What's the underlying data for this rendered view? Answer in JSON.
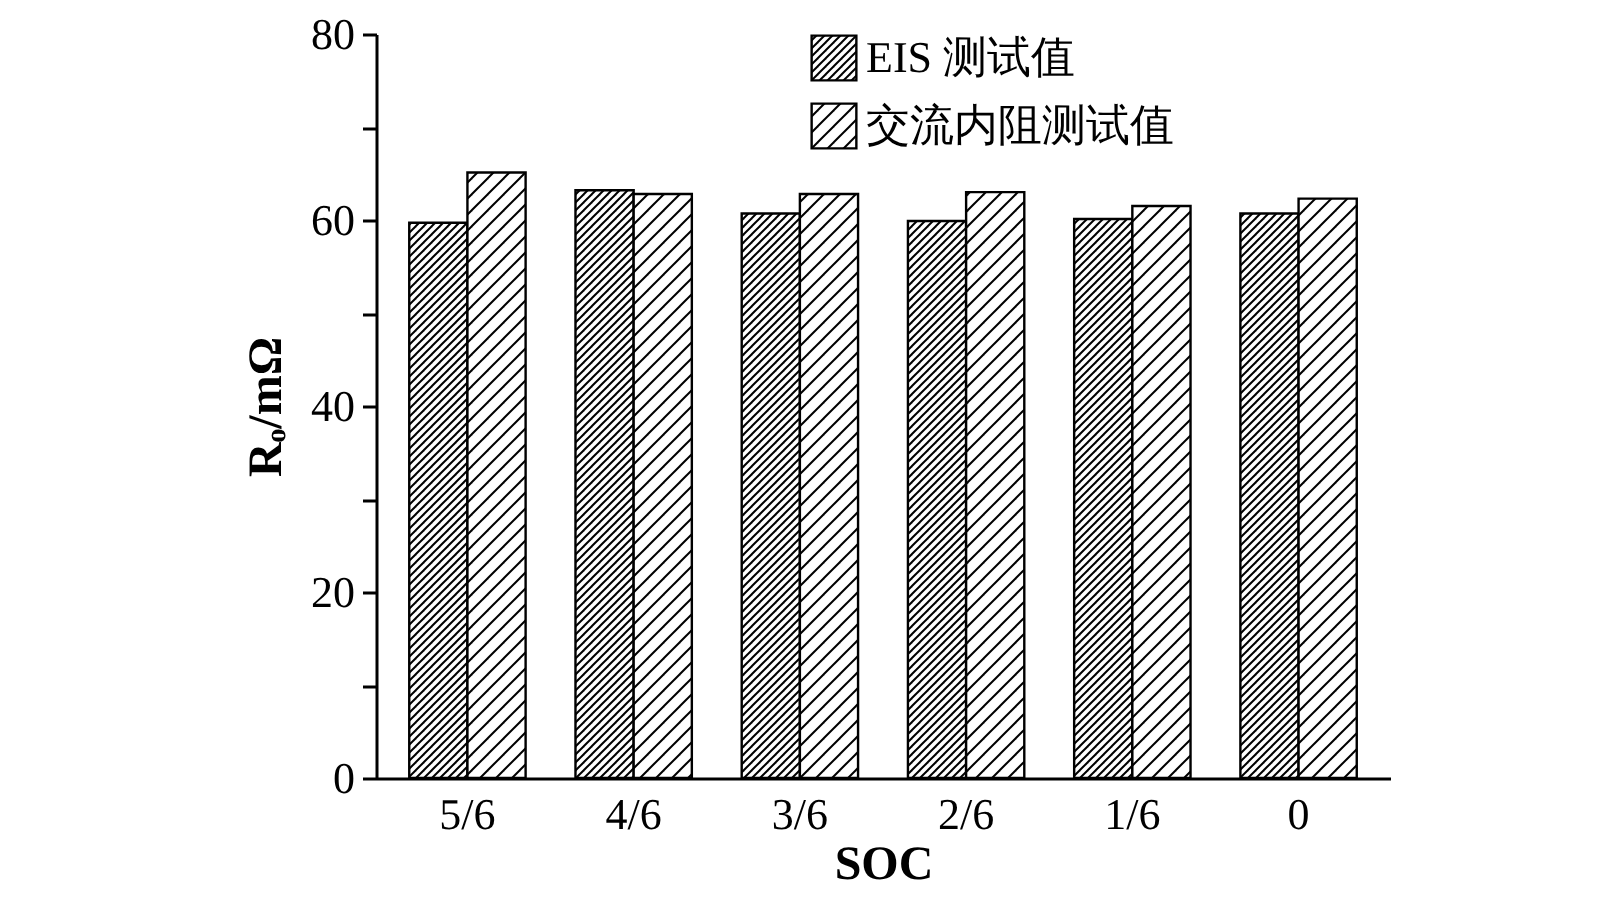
{
  "chart_data": {
    "type": "bar",
    "xlabel": "SOC",
    "ylabel": "Rₒ/mΩ",
    "categories": [
      "5/6",
      "4/6",
      "3/6",
      "2/6",
      "1/6",
      "0"
    ],
    "series": [
      {
        "name": "EIS 测试值",
        "color": "#000000",
        "values": [
          59.7,
          63.2,
          60.7,
          59.9,
          60.1,
          60.7
        ]
      },
      {
        "name": "交流内阻测试值",
        "color": "#000000",
        "values": [
          65.1,
          62.8,
          62.8,
          63.0,
          61.5,
          62.3
        ]
      }
    ],
    "ylim": [
      0,
      80
    ],
    "yticks": [
      0,
      {
        "value": 10,
        "label": null
      },
      20,
      {
        "value": 30,
        "label": null
      },
      40,
      {
        "value": 50,
        "label": null
      },
      60,
      {
        "value": 70,
        "label": null
      },
      80
    ],
    "grid": false,
    "legend": "top right"
  }
}
